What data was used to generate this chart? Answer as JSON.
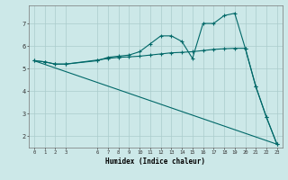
{
  "xlabel": "Humidex (Indice chaleur)",
  "bg_color": "#cce8e8",
  "grid_color": "#aacccc",
  "line_color": "#006868",
  "x_ticks": [
    0,
    1,
    2,
    3,
    6,
    7,
    8,
    9,
    10,
    11,
    12,
    13,
    14,
    15,
    16,
    17,
    18,
    19,
    20,
    21,
    22,
    23
  ],
  "ylim": [
    1.5,
    7.8
  ],
  "xlim": [
    -0.5,
    23.5
  ],
  "series1": [
    [
      0,
      5.35
    ],
    [
      1,
      5.3
    ],
    [
      2,
      5.2
    ],
    [
      3,
      5.2
    ],
    [
      6,
      5.35
    ],
    [
      7,
      5.5
    ],
    [
      8,
      5.55
    ],
    [
      9,
      5.6
    ],
    [
      10,
      5.75
    ],
    [
      11,
      6.1
    ],
    [
      12,
      6.45
    ],
    [
      13,
      6.45
    ],
    [
      14,
      6.2
    ],
    [
      15,
      5.45
    ],
    [
      16,
      7.0
    ],
    [
      17,
      7.0
    ],
    [
      18,
      7.35
    ],
    [
      19,
      7.45
    ],
    [
      20,
      5.9
    ],
    [
      21,
      4.2
    ],
    [
      22,
      2.85
    ],
    [
      23,
      1.65
    ]
  ],
  "series2": [
    [
      0,
      5.35
    ],
    [
      1,
      5.3
    ],
    [
      2,
      5.2
    ],
    [
      3,
      5.2
    ],
    [
      6,
      5.38
    ],
    [
      7,
      5.45
    ],
    [
      8,
      5.5
    ],
    [
      9,
      5.52
    ],
    [
      10,
      5.55
    ],
    [
      11,
      5.6
    ],
    [
      12,
      5.65
    ],
    [
      13,
      5.7
    ],
    [
      14,
      5.72
    ],
    [
      15,
      5.75
    ],
    [
      16,
      5.8
    ],
    [
      17,
      5.85
    ],
    [
      18,
      5.88
    ],
    [
      19,
      5.9
    ],
    [
      20,
      5.9
    ],
    [
      21,
      4.2
    ],
    [
      22,
      2.85
    ],
    [
      23,
      1.65
    ]
  ],
  "series3": [
    [
      0,
      5.35
    ],
    [
      23,
      1.65
    ]
  ],
  "y_ticks": [
    2,
    3,
    4,
    5,
    6,
    7
  ]
}
